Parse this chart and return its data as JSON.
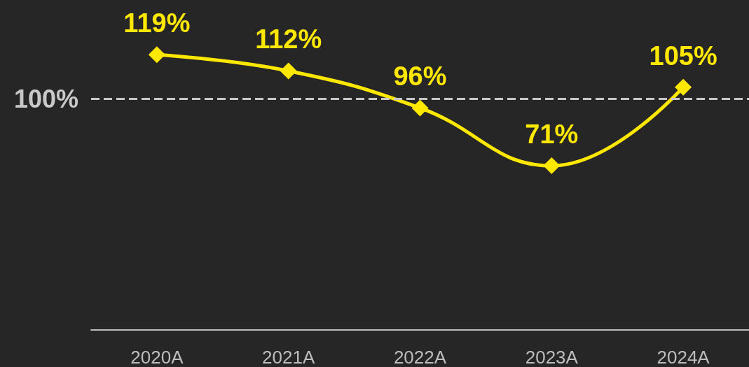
{
  "chart_data": {
    "type": "line",
    "categories": [
      "2020A",
      "2021A",
      "2022A",
      "2023A",
      "2024A"
    ],
    "series": [
      {
        "color": "#ffe800",
        "values": [
          119,
          112,
          96,
          71,
          105
        ],
        "value_labels": [
          "119%",
          "112%",
          "96%",
          "71%",
          "105%"
        ]
      }
    ],
    "ref_lines": [
      {
        "axis": "y",
        "value": 100,
        "label": "100%",
        "color": "#c8c8c8",
        "line_style": "dashed"
      }
    ],
    "marker": "diamond",
    "line_style": "solid",
    "grid": false
  }
}
